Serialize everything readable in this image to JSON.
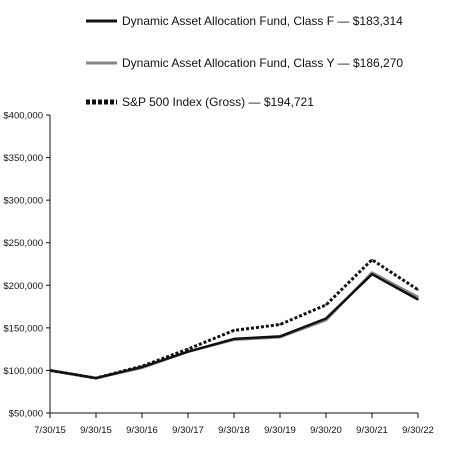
{
  "chart_data": {
    "type": "line",
    "x": [
      "7/30/15",
      "9/30/15",
      "9/30/16",
      "9/30/17",
      "9/30/18",
      "9/30/19",
      "9/30/20",
      "9/30/21",
      "9/30/22"
    ],
    "y_ticks": [
      "$400,000",
      "$350,000",
      "$300,000",
      "$250,000",
      "$200,000",
      "$150,000",
      "$100,000",
      "$50,000"
    ],
    "ylim": [
      50000,
      400000
    ],
    "grid": false,
    "legend_position": "top",
    "series": [
      {
        "name": "Dynamic Asset Allocation Fund, Class F — $183,314",
        "color": "#111111",
        "style": "solid",
        "values": [
          100000,
          91000,
          104000,
          122000,
          137000,
          140000,
          161000,
          213000,
          183314
        ]
      },
      {
        "name": "Dynamic Asset Allocation Fund, Class Y — $186,270",
        "color": "#888888",
        "style": "solid",
        "values": [
          100000,
          91000,
          103000,
          122000,
          136000,
          139000,
          159000,
          215000,
          186270
        ]
      },
      {
        "name": "S&P 500 Index (Gross) — $194,721",
        "color": "#111111",
        "style": "dotted",
        "values": [
          100000,
          91000,
          105000,
          125000,
          147000,
          154000,
          177000,
          230000,
          194721
        ]
      }
    ]
  }
}
